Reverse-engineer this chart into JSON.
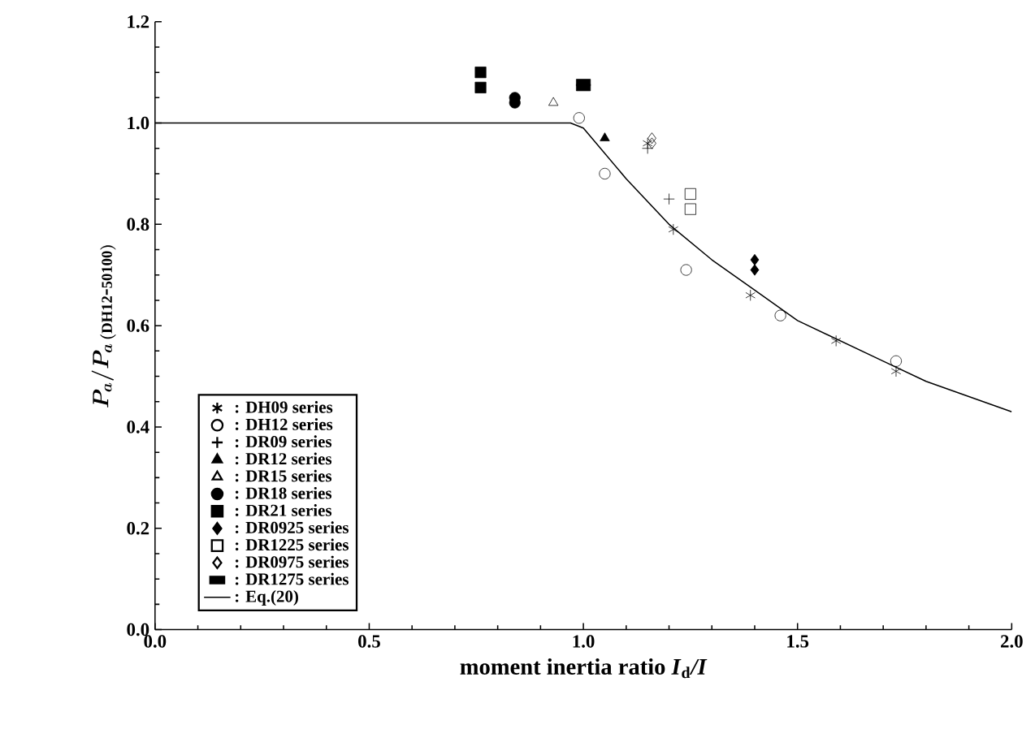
{
  "chart_data": {
    "type": "scatter",
    "xlabel": "moment inertia ratio  *I*$_{d}$*/I*",
    "ylabel": "P_{a}/P_{a\\,(\\mathrm{DH12\\mbox{-}50100})}",
    "xlim": [
      0,
      2
    ],
    "ylim": [
      0,
      1.2
    ],
    "xticks": [
      {
        "value": 0,
        "label": "0.0"
      },
      {
        "value": 0.5,
        "label": "0.5"
      },
      {
        "value": 1,
        "label": "1.0"
      },
      {
        "value": 1.5,
        "label": "1.5"
      },
      {
        "value": 2,
        "label": "2.0"
      }
    ],
    "yticks": [
      {
        "value": 0,
        "label": "0.0"
      },
      {
        "value": 0.2,
        "label": "0.2"
      },
      {
        "value": 0.4,
        "label": "0.4"
      },
      {
        "value": 0.6,
        "label": "0.6"
      },
      {
        "value": 0.8,
        "label": "0.8"
      },
      {
        "value": 1,
        "label": "1.0"
      },
      {
        "value": 1.2,
        "label": "1.2"
      }
    ],
    "grid": false,
    "legend": "bottom left",
    "series": [
      {
        "name": ": DH09 series",
        "color": "#000000",
        "marker": "cross",
        "x": [
          1.15,
          1.21,
          1.39,
          1.59,
          1.73
        ],
        "values": [
          0.96,
          0.79,
          0.66,
          0.57,
          0.51
        ]
      },
      {
        "name": ": DH12 series",
        "color": "#000000",
        "marker": "circle",
        "x": [
          0.99,
          1.05,
          1.24,
          1.46,
          1.73
        ],
        "values": [
          1.01,
          0.9,
          0.71,
          0.62,
          0.53
        ]
      },
      {
        "name": ": DR09 series",
        "color": "#000000",
        "marker": "plus",
        "x": [
          1.15,
          1.2
        ],
        "values": [
          0.95,
          0.85
        ]
      },
      {
        "name": ": DR12 series",
        "color": "#000000",
        "marker": "triangle-filled",
        "x": [
          1.05
        ],
        "values": [
          0.97
        ]
      },
      {
        "name": ": DR15 series",
        "color": "#000000",
        "marker": "triangle",
        "x": [
          0.93
        ],
        "values": [
          1.04
        ]
      },
      {
        "name": ": DR18 series",
        "color": "#000000",
        "marker": "circle-filled",
        "x": [
          0.84,
          0.84
        ],
        "values": [
          1.05,
          1.04
        ]
      },
      {
        "name": ": DR21 series",
        "color": "#000000",
        "marker": "square-filled",
        "x": [
          0.76,
          0.76
        ],
        "values": [
          1.1,
          1.07
        ]
      },
      {
        "name": ": DR0925 series",
        "color": "#000000",
        "marker": "diamond-filled",
        "x": [
          1.4,
          1.4
        ],
        "values": [
          0.73,
          0.71
        ]
      },
      {
        "name": ": DR1225 series",
        "color": "#000000",
        "marker": "square-open",
        "x": [
          1.25,
          1.25
        ],
        "values": [
          0.86,
          0.83
        ]
      },
      {
        "name": ": DR0975 series",
        "color": "#000000",
        "marker": "diamond",
        "x": [
          1.16,
          1.16
        ],
        "values": [
          0.97,
          0.96
        ]
      },
      {
        "name": ": DR1275 series",
        "color": "#000000",
        "marker": "square",
        "x": [
          1.0,
          1.0
        ],
        "values": [
          1.08,
          1.07
        ]
      },
      {
        "name": ": Eq.(20)",
        "type": "line",
        "color": "#000000",
        "marker": "none",
        "line_style": "solid",
        "x": [
          0,
          0.97,
          1.0,
          1.1,
          1.2,
          1.3,
          1.4,
          1.5,
          1.6,
          1.7,
          1.8,
          1.9,
          2.0
        ],
        "values": [
          1.0,
          1.0,
          0.99,
          0.89,
          0.8,
          0.73,
          0.67,
          0.61,
          0.57,
          0.53,
          0.49,
          0.46,
          0.43
        ]
      }
    ]
  }
}
